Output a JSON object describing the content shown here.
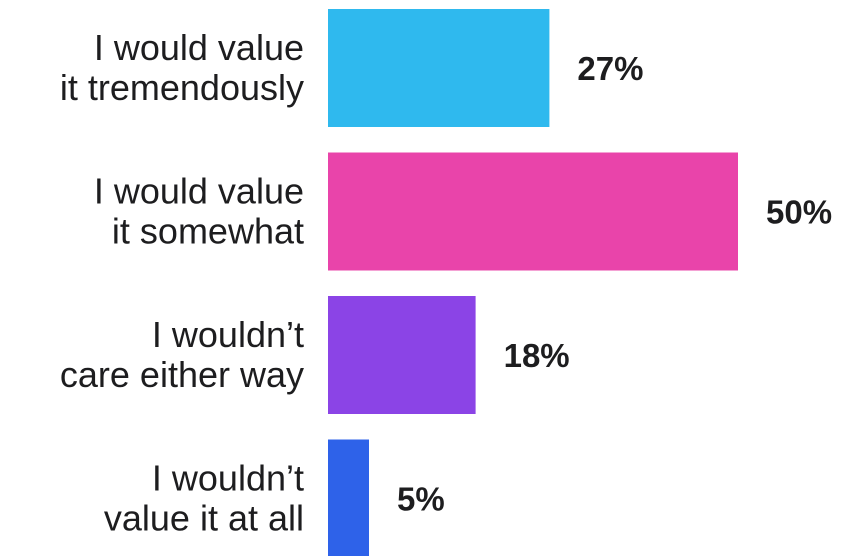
{
  "chart_data": {
    "type": "bar",
    "orientation": "horizontal",
    "categories": [
      [
        "I would value",
        "it tremendously"
      ],
      [
        "I would value",
        "it somewhat"
      ],
      [
        "I wouldn’t",
        "care either way"
      ],
      [
        "I wouldn’t",
        "value it at all"
      ]
    ],
    "values": [
      27,
      50,
      18,
      5
    ],
    "value_labels": [
      "27%",
      "50%",
      "18%",
      "5%"
    ],
    "colors": [
      "#2fb9ee",
      "#e944aa",
      "#8b44e6",
      "#2e62e9"
    ],
    "title": "",
    "xlabel": "",
    "ylabel": "",
    "xlim": [
      0,
      50
    ],
    "grid": false,
    "legend": "none"
  }
}
